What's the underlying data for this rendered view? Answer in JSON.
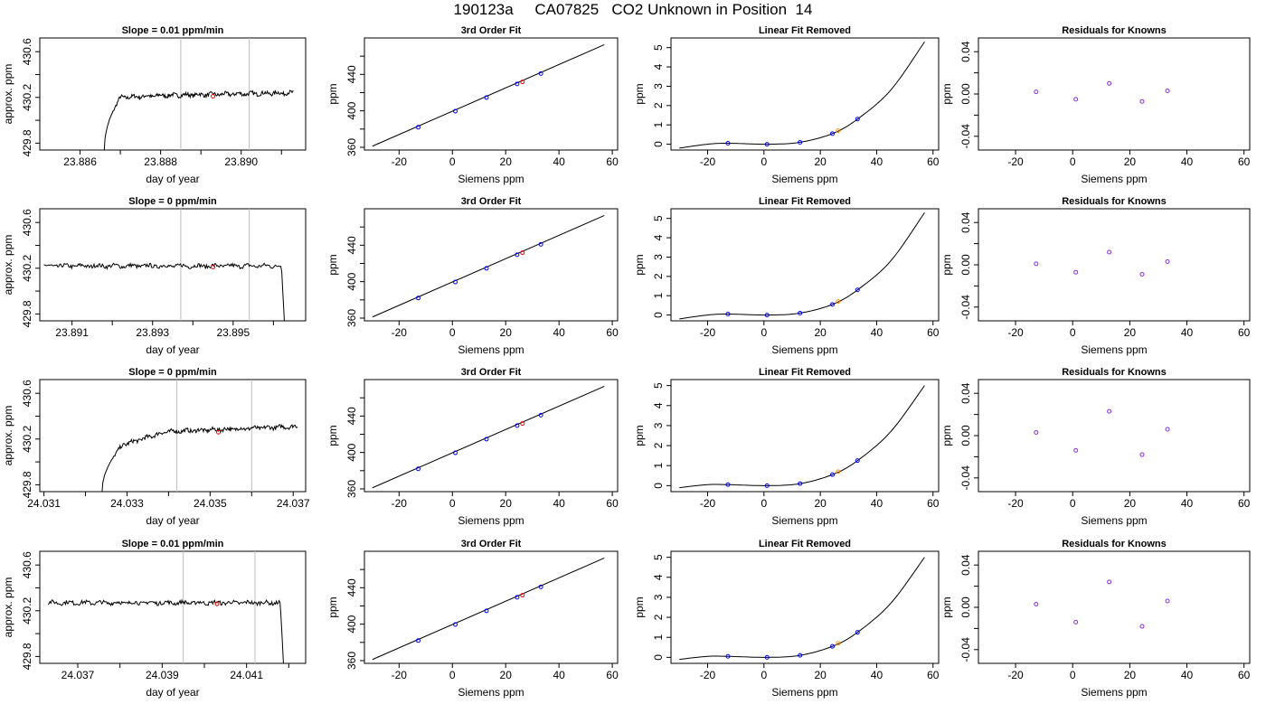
{
  "figure_title": "190123a     CA07825   CO2 Unknown in Position  14",
  "colors": {
    "trace": "#000000",
    "vline": "#bebebe",
    "unknown_point": "#ff0000",
    "fit_known_point": "#0000ff",
    "fit_unknown_point": "#ff0000",
    "linrem_unknown_point": "#ff8c00",
    "residual_point": "#8a2be2"
  },
  "chart_data": [
    {
      "type": "line",
      "panel": "timeseries",
      "title": "Slope =  0.01  ppm/min",
      "xlabel": "day of year",
      "ylabel": "approx. ppm",
      "xlim": [
        23.885,
        23.8916
      ],
      "ylim": [
        429.74,
        430.72
      ],
      "xticks": [
        23.886,
        23.887,
        23.888,
        23.889,
        23.89,
        23.891
      ],
      "xtick_labels": [
        "23.886",
        "",
        "23.888",
        "",
        "23.890",
        ""
      ],
      "yticks": [
        429.8,
        430.0,
        430.2,
        430.4,
        430.6
      ],
      "ytick_labels": [
        "429.8",
        "",
        "430.2",
        "",
        "430.6"
      ],
      "vlines": [
        23.8885,
        23.8902
      ],
      "marker": {
        "x": 23.8893,
        "y": 430.21
      },
      "trace": {
        "start": 23.8866,
        "end": 23.8913,
        "start_y": 429.74,
        "rise_to": 430.2,
        "rise_end": 23.887,
        "level": 430.21,
        "drift": 0.03,
        "drop": false
      }
    },
    {
      "type": "scatter",
      "panel": "fit",
      "title": "3rd Order Fit",
      "xlabel": "Siemens ppm",
      "ylabel": "ppm",
      "xlim": [
        -33,
        62
      ],
      "ylim": [
        357,
        480
      ],
      "xticks": [
        -20,
        0,
        20,
        40,
        60
      ],
      "xtick_labels": [
        "-20",
        "0",
        "20",
        "40",
        "60"
      ],
      "yticks": [
        360,
        380,
        400,
        420,
        440,
        460
      ],
      "ytick_labels": [
        "360",
        "",
        "400",
        "",
        "440",
        ""
      ],
      "line": {
        "x": [
          -30,
          57
        ],
        "y": [
          361.2,
          472.6
        ]
      },
      "knowns": {
        "x": [
          -12.8,
          1.1,
          12.8,
          24.3,
          33.2
        ],
        "y": [
          382.0,
          399.6,
          414.6,
          429.5,
          440.9
        ]
      },
      "unknown": {
        "x": 26.3,
        "y": 431.8
      }
    },
    {
      "type": "line",
      "panel": "linear_removed",
      "title": "Linear Fit Removed",
      "xlabel": "Siemens ppm",
      "ylabel": "ppm",
      "xlim": [
        -33,
        62
      ],
      "ylim": [
        -0.3,
        5.5
      ],
      "xticks": [
        -20,
        0,
        20,
        40,
        60
      ],
      "xtick_labels": [
        "-20",
        "0",
        "20",
        "40",
        "60"
      ],
      "yticks": [
        0,
        1,
        2,
        3,
        4,
        5
      ],
      "ytick_labels": [
        "0",
        "1",
        "2",
        "3",
        "4",
        "5"
      ],
      "curve_points": {
        "x": [
          -30,
          -20,
          -12.8,
          1.1,
          12.8,
          24.3,
          33.2,
          45,
          57
        ],
        "y": [
          -0.2,
          0.0,
          0.05,
          0.0,
          0.1,
          0.55,
          1.3,
          2.8,
          5.3
        ]
      },
      "knowns": {
        "x": [
          -12.8,
          1.1,
          12.8,
          24.3,
          33.2
        ],
        "y": [
          0.05,
          0.0,
          0.1,
          0.55,
          1.3
        ]
      },
      "unknown": {
        "x": 26.3,
        "y": 0.7
      }
    },
    {
      "type": "scatter",
      "panel": "residuals",
      "title": "Residuals for Knowns",
      "xlabel": "Siemens ppm",
      "ylabel": "ppm",
      "xlim": [
        -33,
        62
      ],
      "ylim": [
        -0.053,
        0.053
      ],
      "xticks": [
        -20,
        0,
        20,
        40,
        60
      ],
      "xtick_labels": [
        "-20",
        "0",
        "20",
        "40",
        "60"
      ],
      "yticks": [
        -0.04,
        -0.02,
        0.0,
        0.02,
        0.04
      ],
      "ytick_labels": [
        "-0.04",
        "",
        "0.00",
        "",
        "0.04"
      ],
      "points": {
        "x": [
          -12.8,
          1.1,
          12.8,
          24.3,
          33.2
        ],
        "y": [
          0.002,
          -0.005,
          0.01,
          -0.007,
          0.003
        ]
      }
    },
    {
      "type": "line",
      "panel": "timeseries",
      "title": "Slope =  0  ppm/min",
      "xlabel": "day of year",
      "ylabel": "approx. ppm",
      "xlim": [
        23.8902,
        23.8968
      ],
      "ylim": [
        429.74,
        430.72
      ],
      "xticks": [
        23.891,
        23.892,
        23.893,
        23.894,
        23.895,
        23.896
      ],
      "xtick_labels": [
        "23.891",
        "",
        "23.893",
        "",
        "23.895",
        ""
      ],
      "yticks": [
        429.8,
        430.0,
        430.2,
        430.4,
        430.6
      ],
      "ytick_labels": [
        "429.8",
        "",
        "430.2",
        "",
        "430.6"
      ],
      "vlines": [
        23.8937,
        23.8954
      ],
      "marker": {
        "x": 23.8945,
        "y": 430.21
      },
      "trace": {
        "start": 23.8903,
        "end": 23.8963,
        "level": 430.22,
        "drift": 0.0,
        "rise": false,
        "drop": true,
        "drop_start": 23.8962,
        "drop_to": 429.74
      }
    },
    {
      "type": "scatter",
      "panel": "fit",
      "title": "3rd Order Fit",
      "xlabel": "Siemens ppm",
      "ylabel": "ppm",
      "xlim": [
        -33,
        62
      ],
      "ylim": [
        357,
        480
      ],
      "xticks": [
        -20,
        0,
        20,
        40,
        60
      ],
      "xtick_labels": [
        "-20",
        "0",
        "20",
        "40",
        "60"
      ],
      "yticks": [
        360,
        380,
        400,
        420,
        440,
        460
      ],
      "ytick_labels": [
        "360",
        "",
        "400",
        "",
        "440",
        ""
      ],
      "line": {
        "x": [
          -30,
          57
        ],
        "y": [
          361.2,
          472.6
        ]
      },
      "knowns": {
        "x": [
          -12.8,
          1.1,
          12.8,
          24.3,
          33.2
        ],
        "y": [
          382.0,
          399.6,
          414.6,
          429.5,
          440.9
        ]
      },
      "unknown": {
        "x": 26.3,
        "y": 431.8
      }
    },
    {
      "type": "line",
      "panel": "linear_removed",
      "title": "Linear Fit Removed",
      "xlabel": "Siemens ppm",
      "ylabel": "ppm",
      "xlim": [
        -33,
        62
      ],
      "ylim": [
        -0.3,
        5.5
      ],
      "xticks": [
        -20,
        0,
        20,
        40,
        60
      ],
      "xtick_labels": [
        "-20",
        "0",
        "20",
        "40",
        "60"
      ],
      "yticks": [
        0,
        1,
        2,
        3,
        4,
        5
      ],
      "ytick_labels": [
        "0",
        "1",
        "2",
        "3",
        "4",
        "5"
      ],
      "curve_points": {
        "x": [
          -30,
          -20,
          -12.8,
          1.1,
          12.8,
          24.3,
          33.2,
          45,
          57
        ],
        "y": [
          -0.2,
          0.0,
          0.05,
          0.0,
          0.1,
          0.55,
          1.3,
          2.8,
          5.3
        ]
      },
      "knowns": {
        "x": [
          -12.8,
          1.1,
          12.8,
          24.3,
          33.2
        ],
        "y": [
          0.05,
          0.0,
          0.1,
          0.55,
          1.3
        ]
      },
      "unknown": {
        "x": 26.3,
        "y": 0.7
      }
    },
    {
      "type": "scatter",
      "panel": "residuals",
      "title": "Residuals for Knowns",
      "xlabel": "Siemens ppm",
      "ylabel": "ppm",
      "xlim": [
        -33,
        62
      ],
      "ylim": [
        -0.053,
        0.053
      ],
      "xticks": [
        -20,
        0,
        20,
        40,
        60
      ],
      "xtick_labels": [
        "-20",
        "0",
        "20",
        "40",
        "60"
      ],
      "yticks": [
        -0.04,
        -0.02,
        0.0,
        0.02,
        0.04
      ],
      "ytick_labels": [
        "-0.04",
        "",
        "0.00",
        "",
        "0.04"
      ],
      "points": {
        "x": [
          -12.8,
          1.1,
          12.8,
          24.3,
          33.2
        ],
        "y": [
          0.001,
          -0.007,
          0.012,
          -0.009,
          0.003
        ]
      }
    },
    {
      "type": "line",
      "panel": "timeseries",
      "title": "Slope =  0  ppm/min",
      "xlabel": "day of year",
      "ylabel": "approx. ppm",
      "xlim": [
        24.0309,
        24.0373
      ],
      "ylim": [
        429.74,
        430.72
      ],
      "xticks": [
        24.031,
        24.032,
        24.033,
        24.034,
        24.035,
        24.036,
        24.037
      ],
      "xtick_labels": [
        "24.031",
        "",
        "24.033",
        "",
        "24.035",
        "",
        "24.037"
      ],
      "yticks": [
        429.8,
        430.0,
        430.2,
        430.4,
        430.6
      ],
      "ytick_labels": [
        "429.8",
        "",
        "430.2",
        "",
        "430.6"
      ],
      "vlines": [
        24.0342,
        24.036
      ],
      "marker": {
        "x": 24.0352,
        "y": 430.26
      },
      "trace": {
        "start": 24.0324,
        "end": 24.0371,
        "start_y": 429.74,
        "rise_to": 430.15,
        "rise_end": 24.0329,
        "level": 430.25,
        "drift": 0.06,
        "drop": false
      }
    },
    {
      "type": "scatter",
      "panel": "fit",
      "title": "3rd Order Fit",
      "xlabel": "Siemens ppm",
      "ylabel": "ppm",
      "xlim": [
        -33,
        62
      ],
      "ylim": [
        357,
        480
      ],
      "xticks": [
        -20,
        0,
        20,
        40,
        60
      ],
      "xtick_labels": [
        "-20",
        "0",
        "20",
        "40",
        "60"
      ],
      "yticks": [
        360,
        380,
        400,
        420,
        440,
        460
      ],
      "ytick_labels": [
        "360",
        "",
        "400",
        "",
        "440",
        ""
      ],
      "line": {
        "x": [
          -30,
          57
        ],
        "y": [
          361.2,
          472.6
        ]
      },
      "knowns": {
        "x": [
          -12.8,
          1.1,
          12.8,
          24.3,
          33.2
        ],
        "y": [
          382.0,
          399.6,
          414.6,
          429.5,
          440.9
        ]
      },
      "unknown": {
        "x": 26.3,
        "y": 431.8
      }
    },
    {
      "type": "line",
      "panel": "linear_removed",
      "title": "Linear Fit Removed",
      "xlabel": "Siemens ppm",
      "ylabel": "ppm",
      "xlim": [
        -33,
        62
      ],
      "ylim": [
        -0.3,
        5.3
      ],
      "xticks": [
        -20,
        0,
        20,
        40,
        60
      ],
      "xtick_labels": [
        "-20",
        "0",
        "20",
        "40",
        "60"
      ],
      "yticks": [
        0,
        1,
        2,
        3,
        4,
        5
      ],
      "ytick_labels": [
        "0",
        "1",
        "2",
        "3",
        "4",
        "5"
      ],
      "curve_points": {
        "x": [
          -30,
          -20,
          -12.8,
          1.1,
          12.8,
          24.3,
          33.2,
          45,
          57
        ],
        "y": [
          -0.1,
          0.05,
          0.05,
          0.0,
          0.1,
          0.55,
          1.25,
          2.7,
          5.0
        ]
      },
      "knowns": {
        "x": [
          -12.8,
          1.1,
          12.8,
          24.3,
          33.2
        ],
        "y": [
          0.05,
          0.0,
          0.1,
          0.55,
          1.25
        ]
      },
      "unknown": {
        "x": 26.3,
        "y": 0.7
      }
    },
    {
      "type": "scatter",
      "panel": "residuals",
      "title": "Residuals for Knowns",
      "xlabel": "Siemens ppm",
      "ylabel": "ppm",
      "xlim": [
        -33,
        62
      ],
      "ylim": [
        -0.053,
        0.053
      ],
      "xticks": [
        -20,
        0,
        20,
        40,
        60
      ],
      "xtick_labels": [
        "-20",
        "0",
        "20",
        "40",
        "60"
      ],
      "yticks": [
        -0.04,
        -0.02,
        0.0,
        0.02,
        0.04
      ],
      "ytick_labels": [
        "-0.04",
        "",
        "0.00",
        "",
        "0.04"
      ],
      "points": {
        "x": [
          -12.8,
          1.1,
          12.8,
          24.3,
          33.2
        ],
        "y": [
          0.003,
          -0.014,
          0.023,
          -0.018,
          0.006
        ]
      }
    },
    {
      "type": "line",
      "panel": "timeseries",
      "title": "Slope =  0.01  ppm/min",
      "xlabel": "day of year",
      "ylabel": "approx. ppm",
      "xlim": [
        24.0361,
        24.0424
      ],
      "ylim": [
        429.74,
        430.72
      ],
      "xticks": [
        24.037,
        24.038,
        24.039,
        24.04,
        24.041,
        24.042
      ],
      "xtick_labels": [
        "24.037",
        "",
        "24.039",
        "",
        "24.041",
        ""
      ],
      "yticks": [
        429.8,
        430.0,
        430.2,
        430.4,
        430.6
      ],
      "ytick_labels": [
        "429.8",
        "",
        "430.2",
        "",
        "430.6"
      ],
      "vlines": [
        24.0395,
        24.0412
      ],
      "marker": {
        "x": 24.0403,
        "y": 430.26
      },
      "trace": {
        "start": 24.0363,
        "end": 24.0419,
        "level": 430.27,
        "drift": 0.0,
        "rise": false,
        "drop": true,
        "drop_start": 24.0418,
        "drop_to": 429.74
      }
    },
    {
      "type": "scatter",
      "panel": "fit",
      "title": "3rd Order Fit",
      "xlabel": "Siemens ppm",
      "ylabel": "ppm",
      "xlim": [
        -33,
        62
      ],
      "ylim": [
        357,
        480
      ],
      "xticks": [
        -20,
        0,
        20,
        40,
        60
      ],
      "xtick_labels": [
        "-20",
        "0",
        "20",
        "40",
        "60"
      ],
      "yticks": [
        360,
        380,
        400,
        420,
        440,
        460
      ],
      "ytick_labels": [
        "360",
        "",
        "400",
        "",
        "440",
        ""
      ],
      "line": {
        "x": [
          -30,
          57
        ],
        "y": [
          361.2,
          472.6
        ]
      },
      "knowns": {
        "x": [
          -12.8,
          1.1,
          12.8,
          24.3,
          33.2
        ],
        "y": [
          382.0,
          399.6,
          414.6,
          429.5,
          440.9
        ]
      },
      "unknown": {
        "x": 26.3,
        "y": 431.8
      }
    },
    {
      "type": "line",
      "panel": "linear_removed",
      "title": "Linear Fit Removed",
      "xlabel": "Siemens ppm",
      "ylabel": "ppm",
      "xlim": [
        -33,
        62
      ],
      "ylim": [
        -0.3,
        5.3
      ],
      "xticks": [
        -20,
        0,
        20,
        40,
        60
      ],
      "xtick_labels": [
        "-20",
        "0",
        "20",
        "40",
        "60"
      ],
      "yticks": [
        0,
        1,
        2,
        3,
        4,
        5
      ],
      "ytick_labels": [
        "0",
        "1",
        "2",
        "3",
        "4",
        "5"
      ],
      "curve_points": {
        "x": [
          -30,
          -20,
          -12.8,
          1.1,
          12.8,
          24.3,
          33.2,
          45,
          57
        ],
        "y": [
          -0.1,
          0.05,
          0.05,
          0.0,
          0.1,
          0.55,
          1.25,
          2.7,
          5.0
        ]
      },
      "knowns": {
        "x": [
          -12.8,
          1.1,
          12.8,
          24.3,
          33.2
        ],
        "y": [
          0.05,
          0.0,
          0.1,
          0.55,
          1.25
        ]
      },
      "unknown": {
        "x": 26.3,
        "y": 0.7
      }
    },
    {
      "type": "scatter",
      "panel": "residuals",
      "title": "Residuals for Knowns",
      "xlabel": "Siemens ppm",
      "ylabel": "ppm",
      "xlim": [
        -33,
        62
      ],
      "ylim": [
        -0.053,
        0.053
      ],
      "xticks": [
        -20,
        0,
        20,
        40,
        60
      ],
      "xtick_labels": [
        "-20",
        "0",
        "20",
        "40",
        "60"
      ],
      "yticks": [
        -0.04,
        -0.02,
        0.0,
        0.02,
        0.04
      ],
      "ytick_labels": [
        "-0.04",
        "",
        "0.00",
        "",
        "0.04"
      ],
      "points": {
        "x": [
          -12.8,
          1.1,
          12.8,
          24.3,
          33.2
        ],
        "y": [
          0.003,
          -0.014,
          0.024,
          -0.018,
          0.006
        ]
      }
    }
  ]
}
